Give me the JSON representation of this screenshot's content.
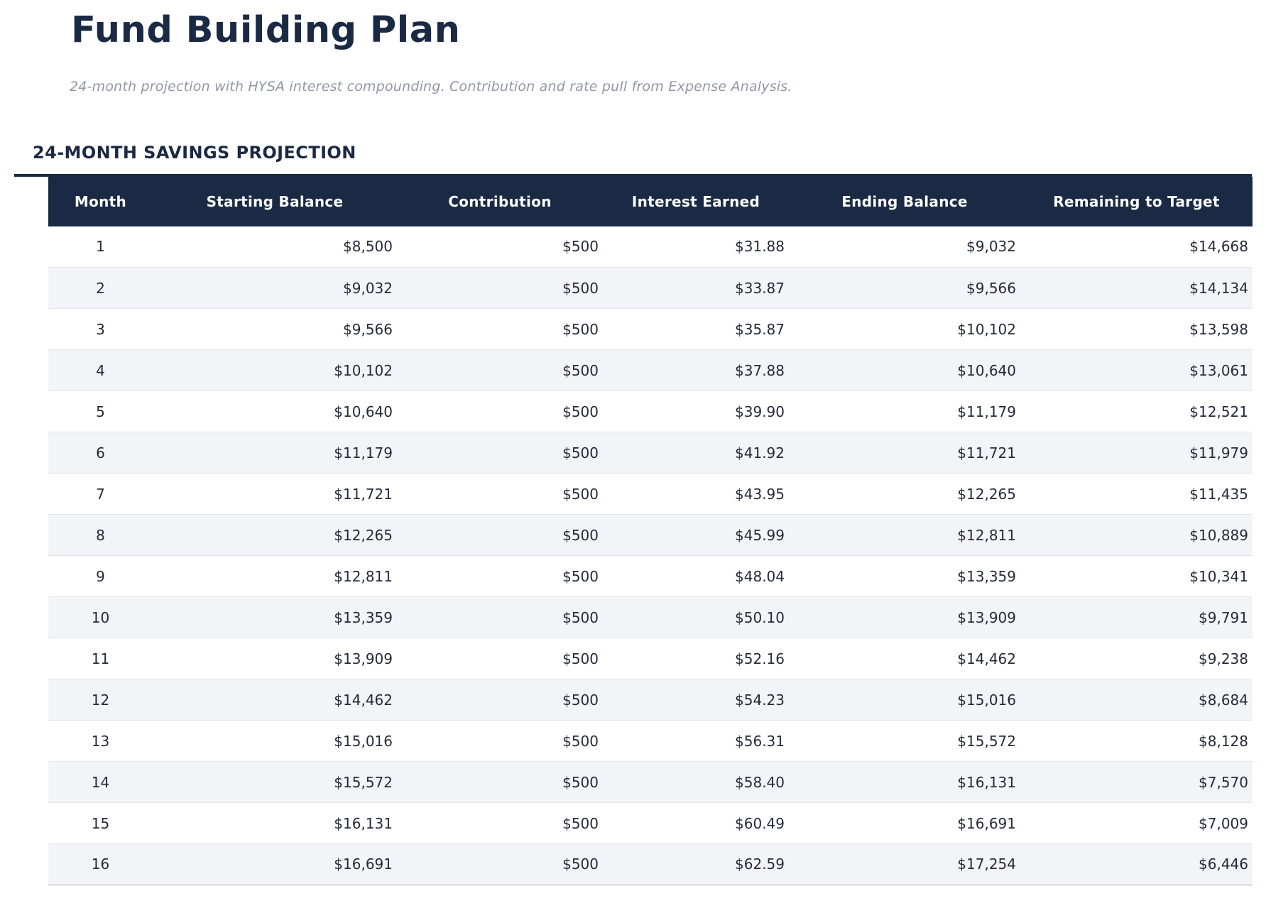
{
  "page": {
    "title": "Fund Building Plan",
    "subtitle": "24-month projection with HYSA interest compounding. Contribution and rate pull from Expense Analysis."
  },
  "section": {
    "heading": "24-MONTH SAVINGS PROJECTION"
  },
  "table": {
    "columns": [
      "Month",
      "Starting Balance",
      "Contribution",
      "Interest Earned",
      "Ending Balance",
      "Remaining to Target"
    ],
    "column_keys": [
      "month",
      "starting-balance",
      "contribution",
      "interest-earned",
      "ending-balance",
      "remaining-to-target"
    ],
    "rows": [
      [
        "1",
        "$8,500",
        "$500",
        "$31.88",
        "$9,032",
        "$14,668"
      ],
      [
        "2",
        "$9,032",
        "$500",
        "$33.87",
        "$9,566",
        "$14,134"
      ],
      [
        "3",
        "$9,566",
        "$500",
        "$35.87",
        "$10,102",
        "$13,598"
      ],
      [
        "4",
        "$10,102",
        "$500",
        "$37.88",
        "$10,640",
        "$13,061"
      ],
      [
        "5",
        "$10,640",
        "$500",
        "$39.90",
        "$11,179",
        "$12,521"
      ],
      [
        "6",
        "$11,179",
        "$500",
        "$41.92",
        "$11,721",
        "$11,979"
      ],
      [
        "7",
        "$11,721",
        "$500",
        "$43.95",
        "$12,265",
        "$11,435"
      ],
      [
        "8",
        "$12,265",
        "$500",
        "$45.99",
        "$12,811",
        "$10,889"
      ],
      [
        "9",
        "$12,811",
        "$500",
        "$48.04",
        "$13,359",
        "$10,341"
      ],
      [
        "10",
        "$13,359",
        "$500",
        "$50.10",
        "$13,909",
        "$9,791"
      ],
      [
        "11",
        "$13,909",
        "$500",
        "$52.16",
        "$14,462",
        "$9,238"
      ],
      [
        "12",
        "$14,462",
        "$500",
        "$54.23",
        "$15,016",
        "$8,684"
      ],
      [
        "13",
        "$15,016",
        "$500",
        "$56.31",
        "$15,572",
        "$8,128"
      ],
      [
        "14",
        "$15,572",
        "$500",
        "$58.40",
        "$16,131",
        "$7,570"
      ],
      [
        "15",
        "$16,131",
        "$500",
        "$60.49",
        "$16,691",
        "$7,009"
      ],
      [
        "16",
        "$16,691",
        "$500",
        "$62.59",
        "$17,254",
        "$6,446"
      ]
    ]
  },
  "colors": {
    "navy": "#1b2a44",
    "alt_row": "#f2f4f7",
    "row_border": "#e2e5ea",
    "subtitle_gray": "#8f97a4",
    "body_text": "#242b38",
    "header_text": "#ffffff"
  }
}
